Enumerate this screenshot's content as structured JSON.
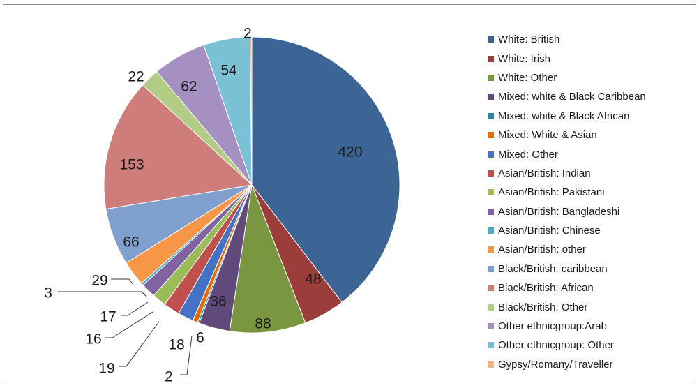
{
  "chart_data": {
    "type": "pie",
    "categories": [
      "White: British",
      "White: Irish",
      "White: Other",
      "Mixed: white & Black Caribbean",
      "Mixed: white & Black African",
      "Mixed: White & Asian",
      "Mixed: Other",
      "Asian/British: Indian",
      "Asian/British: Pakistani",
      "Asian/British: Bangladeshi",
      "Asian/British: Chinese",
      "Asian/British: other",
      "Black/British: caribbean",
      "Black/British: African",
      "Black/British: Other",
      "Other ethnicgroup:Arab",
      "Other ethnicgroup: Other",
      "Gypsy/Romany/Traveller"
    ],
    "values": [
      420,
      48,
      88,
      36,
      2,
      6,
      18,
      19,
      16,
      17,
      3,
      29,
      66,
      153,
      22,
      62,
      54,
      2
    ],
    "data_labels": [
      "420",
      "48",
      "88",
      "36",
      "2",
      "6",
      "18",
      "19",
      "16",
      "17",
      "3",
      "29",
      "66",
      "153",
      "22",
      "62",
      "54",
      "2"
    ],
    "colors": [
      "#3c6596",
      "#9a3d3b",
      "#7a9640",
      "#604a7b",
      "#31859c",
      "#e46c0a",
      "#4472c4",
      "#c0504d",
      "#9bbb59",
      "#8064a2",
      "#4bacc6",
      "#f79646",
      "#7f9fcf",
      "#cf7d7b",
      "#b3cc85",
      "#a590c1",
      "#7bc1d6",
      "#f9b07e"
    ],
    "legend_position": "right",
    "title": ""
  }
}
